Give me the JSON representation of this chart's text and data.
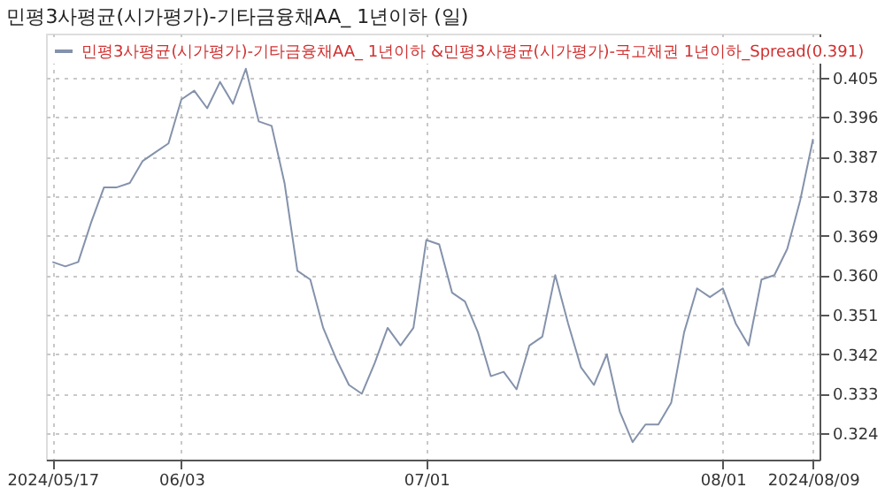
{
  "chart_data": {
    "type": "line",
    "title": "민평3사평균(시가평가)-기타금융채AA_ 1년이하 (일)",
    "categories": [
      "2024/05/17",
      null,
      null,
      null,
      null,
      null,
      null,
      null,
      null,
      null,
      "06/03",
      null,
      null,
      null,
      null,
      null,
      null,
      null,
      null,
      null,
      null,
      null,
      null,
      null,
      null,
      null,
      null,
      null,
      null,
      "07/01",
      null,
      null,
      null,
      null,
      null,
      null,
      null,
      null,
      null,
      null,
      null,
      null,
      null,
      null,
      null,
      null,
      null,
      null,
      null,
      null,
      null,
      null,
      "08/01",
      null,
      null,
      null,
      null,
      null,
      null,
      "2024/08/09"
    ],
    "series": [
      {
        "name": "민평3사평균(시가평가)-기타금융채AA_ 1년이하 &민평3사평균(시가평가)-국고채권 1년이하_Spread(0.391)",
        "color": "#8492ab",
        "values": [
          0.363,
          0.362,
          0.363,
          0.372,
          0.38,
          0.38,
          0.381,
          0.386,
          0.388,
          0.39,
          0.4,
          0.402,
          0.398,
          0.404,
          0.399,
          0.407,
          0.395,
          0.394,
          0.381,
          0.361,
          0.359,
          0.348,
          0.341,
          0.335,
          0.333,
          0.34,
          0.348,
          0.344,
          0.348,
          0.368,
          0.367,
          0.356,
          0.354,
          0.347,
          0.337,
          0.338,
          0.334,
          0.344,
          0.346,
          0.36,
          0.349,
          0.339,
          0.335,
          0.342,
          0.329,
          0.322,
          0.326,
          0.326,
          0.331,
          0.347,
          0.357,
          0.355,
          0.357,
          0.349,
          0.344,
          0.359,
          0.36,
          0.366,
          0.377,
          0.391
        ]
      }
    ],
    "ylim": [
      0.318,
      0.415
    ],
    "yticks": [
      0.324,
      0.333,
      0.342,
      0.351,
      {
        "value": 0.36,
        "label": "0.360"
      },
      0.369,
      0.378,
      0.387,
      0.396,
      0.405
    ],
    "grid": true,
    "legend": "top left",
    "line_style": "solid"
  }
}
